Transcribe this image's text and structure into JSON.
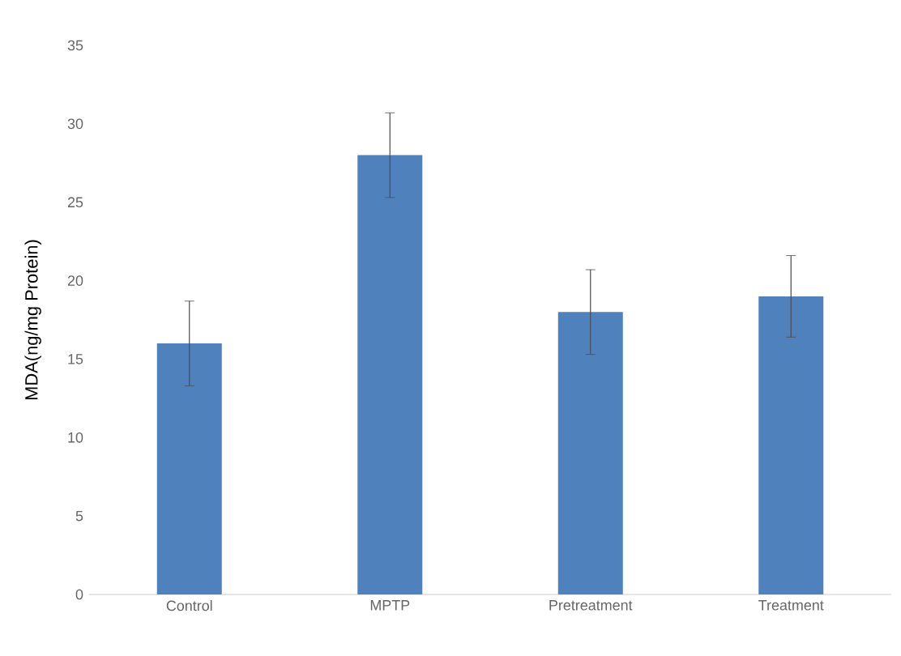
{
  "chart_data": {
    "type": "bar",
    "ylabel": "MDA(ng/mg  Protein)",
    "categories": [
      "Control",
      "MPTP",
      "Pretreatment",
      "Treatment"
    ],
    "values": [
      16,
      28,
      18,
      19
    ],
    "errors": [
      2.7,
      2.7,
      2.7,
      2.6
    ],
    "color": "#4f81bd",
    "ylim": [
      0,
      35
    ],
    "yticks": [
      0,
      5,
      10,
      15,
      20,
      25,
      30,
      35
    ]
  }
}
